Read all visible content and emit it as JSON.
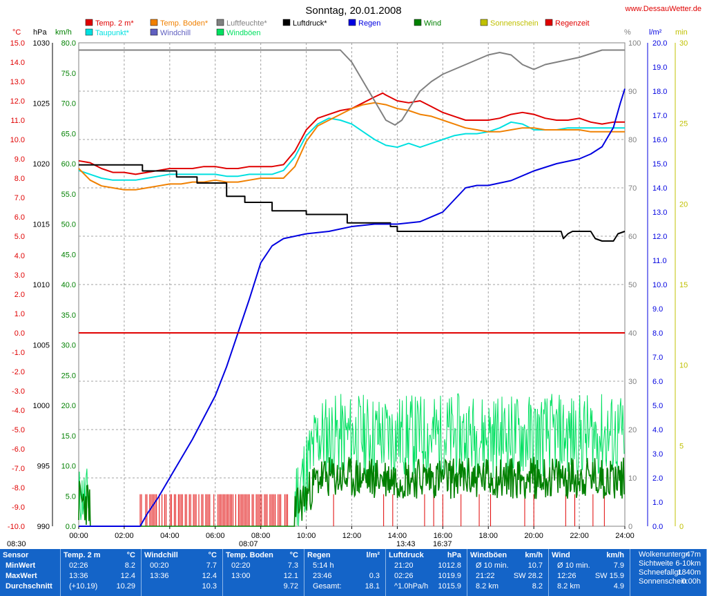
{
  "header": {
    "title": "Sonntag, 20.01.2008",
    "site": "www.DessauWetter.de"
  },
  "legend": [
    {
      "label": "Temp. 2 m*",
      "color": "#e00000"
    },
    {
      "label": "Temp. Boden*",
      "color": "#f08000"
    },
    {
      "label": "Luftfeuchte*",
      "color": "#808080"
    },
    {
      "label": "Luftdruck*",
      "color": "#000000"
    },
    {
      "label": "Regen",
      "color": "#0000e0"
    },
    {
      "label": "Wind",
      "color": "#008000"
    },
    {
      "label": "Sonnenschein",
      "color": "#c0c000"
    },
    {
      "label": "Regenzeit",
      "color": "#e00000"
    },
    {
      "label": "Taupunkt*",
      "color": "#00e0e0"
    },
    {
      "label": "Windchill",
      "color": "#6060c0"
    },
    {
      "label": "Windböen",
      "color": "#00e060"
    }
  ],
  "axis_units": {
    "temp": "°C",
    "pressure": "hPa",
    "wind": "km/h",
    "humidity": "%",
    "rain": "l/m²",
    "sun": "min"
  },
  "sun_times": {
    "sunrise": "08:07",
    "sunset": "16:37",
    "noon": "13:43",
    "dawn": "08:30"
  },
  "chart_data": {
    "type": "line",
    "x_ticks": [
      "00:00",
      "02:00",
      "04:00",
      "06:00",
      "08:00",
      "10:00",
      "12:00",
      "14:00",
      "16:00",
      "18:00",
      "20:00",
      "22:00",
      "24:00"
    ],
    "axes": {
      "temp": {
        "min": -10,
        "max": 15,
        "ticks": [
          "15.0",
          "14.0",
          "13.0",
          "12.0",
          "11.0",
          "10.0",
          "9.0",
          "8.0",
          "7.0",
          "6.0",
          "5.0",
          "4.0",
          "3.0",
          "2.0",
          "1.0",
          "0.0",
          "-1.0",
          "-2.0",
          "-3.0",
          "-4.0",
          "-5.0",
          "-6.0",
          "-7.0",
          "-8.0",
          "-9.0",
          "-10.0"
        ]
      },
      "pressure": {
        "min": 990,
        "max": 1030,
        "ticks": [
          "1030",
          "1025",
          "1020",
          "1015",
          "1010",
          "1005",
          "1000",
          "995",
          "990"
        ]
      },
      "wind": {
        "min": 0,
        "max": 80,
        "ticks": [
          "80.0",
          "75.0",
          "70.0",
          "65.0",
          "60.0",
          "55.0",
          "50.0",
          "45.0",
          "40.0",
          "35.0",
          "30.0",
          "25.0",
          "20.0",
          "15.0",
          "10.0",
          "5.0",
          "0.0"
        ]
      },
      "humidity": {
        "min": 0,
        "max": 100,
        "ticks": [
          "100",
          "90",
          "80",
          "70",
          "60",
          "50",
          "40",
          "30",
          "20",
          "10",
          "0"
        ]
      },
      "rain": {
        "min": 0,
        "max": 20,
        "ticks": [
          "20.0",
          "19.0",
          "18.0",
          "17.0",
          "16.0",
          "15.0",
          "14.0",
          "13.0",
          "12.0",
          "11.0",
          "10.0",
          "9.0",
          "8.0",
          "7.0",
          "6.0",
          "5.0",
          "4.0",
          "3.0",
          "2.0",
          "1.0",
          "0.0"
        ]
      },
      "sun": {
        "min": 0,
        "max": 30,
        "ticks": [
          "30",
          "25",
          "20",
          "15",
          "10",
          "5",
          "0"
        ]
      }
    },
    "series": [
      {
        "name": "Temp. 2 m*",
        "axis": "temp",
        "color": "#e00000",
        "x": [
          0,
          0.5,
          1,
          1.5,
          2,
          2.5,
          3,
          3.5,
          4,
          4.5,
          5,
          5.5,
          6,
          6.5,
          7,
          7.5,
          8,
          8.5,
          9,
          9.5,
          10,
          10.5,
          11,
          11.5,
          12,
          12.5,
          13,
          13.36,
          13.5,
          14,
          14.5,
          15,
          15.5,
          16,
          16.5,
          17,
          17.5,
          18,
          18.5,
          19,
          19.5,
          20,
          20.5,
          21,
          21.5,
          22,
          22.5,
          23,
          23.5,
          24
        ],
        "y": [
          8.9,
          8.8,
          8.5,
          8.3,
          8.3,
          8.2,
          8.3,
          8.4,
          8.5,
          8.5,
          8.5,
          8.6,
          8.6,
          8.5,
          8.5,
          8.6,
          8.6,
          8.6,
          8.7,
          9.4,
          10.5,
          11.1,
          11.3,
          11.5,
          11.6,
          11.9,
          12.2,
          12.4,
          12.3,
          12.0,
          11.9,
          12.0,
          11.7,
          11.4,
          11.2,
          11.0,
          11.0,
          11.0,
          11.1,
          11.3,
          11.4,
          11.3,
          11.1,
          11.0,
          11.0,
          11.1,
          10.9,
          10.8,
          10.9,
          10.9
        ]
      },
      {
        "name": "Taupunkt*",
        "axis": "temp",
        "color": "#00e0e0",
        "x": [
          0,
          0.5,
          1,
          1.5,
          2,
          2.5,
          3,
          3.5,
          4,
          4.5,
          5,
          5.5,
          6,
          6.5,
          7,
          7.5,
          8,
          8.5,
          9,
          9.5,
          10,
          10.5,
          11,
          11.5,
          12,
          12.5,
          13,
          13.5,
          14,
          14.5,
          15,
          15.5,
          16,
          16.5,
          17,
          17.5,
          18,
          18.5,
          19,
          19.5,
          20,
          20.5,
          21,
          21.5,
          22,
          22.5,
          23,
          23.5,
          24
        ],
        "y": [
          8.4,
          8.2,
          8.0,
          7.9,
          7.9,
          7.9,
          8.0,
          8.1,
          8.2,
          8.2,
          8.2,
          8.2,
          8.2,
          8.1,
          8.1,
          8.2,
          8.2,
          8.2,
          8.4,
          9.1,
          10.2,
          10.8,
          11.1,
          11.0,
          10.8,
          10.4,
          10.0,
          9.7,
          9.6,
          9.8,
          9.6,
          9.8,
          10.0,
          10.2,
          10.3,
          10.3,
          10.4,
          10.6,
          10.9,
          10.8,
          10.5,
          10.5,
          10.5,
          10.6,
          10.6,
          10.6,
          10.6,
          10.6,
          10.6
        ]
      },
      {
        "name": "Temp. Boden*",
        "axis": "temp",
        "color": "#f08000",
        "x": [
          0,
          0.5,
          1,
          1.5,
          2,
          2.5,
          3,
          3.5,
          4,
          4.5,
          5,
          5.5,
          6,
          6.5,
          7,
          7.5,
          8,
          8.5,
          9,
          9.5,
          10,
          10.5,
          11,
          11.5,
          12,
          12.5,
          13,
          13.5,
          14,
          14.5,
          15,
          15.5,
          16,
          16.5,
          17,
          17.5,
          18,
          18.5,
          19,
          19.5,
          20,
          20.5,
          21,
          21.5,
          22,
          22.5,
          23,
          23.5,
          24
        ],
        "y": [
          8.5,
          7.9,
          7.6,
          7.5,
          7.4,
          7.4,
          7.5,
          7.6,
          7.7,
          7.7,
          7.8,
          7.8,
          7.9,
          7.8,
          7.8,
          7.9,
          8.0,
          8.0,
          8.0,
          8.6,
          9.9,
          10.7,
          11.0,
          11.3,
          11.6,
          11.8,
          11.9,
          11.8,
          11.6,
          11.5,
          11.3,
          11.2,
          11.0,
          10.8,
          10.6,
          10.5,
          10.4,
          10.4,
          10.5,
          10.6,
          10.6,
          10.5,
          10.5,
          10.5,
          10.5,
          10.4,
          10.4,
          10.4,
          10.4
        ]
      },
      {
        "name": "Luftfeuchte*",
        "axis": "humidity",
        "color": "#808080",
        "x": [
          0,
          1,
          2,
          3,
          4,
          5,
          6,
          7,
          8,
          9,
          10,
          11,
          11.5,
          12,
          12.5,
          13,
          13.5,
          13.9,
          14.2,
          14.6,
          15,
          15.5,
          16,
          16.5,
          17,
          17.5,
          18,
          18.5,
          19,
          19.5,
          20,
          20.5,
          21,
          21.5,
          22,
          23,
          24
        ],
        "y": [
          98.5,
          98.5,
          98.5,
          98.5,
          98.5,
          98.5,
          98.5,
          98.5,
          98.5,
          98.5,
          98.5,
          98.5,
          98.5,
          96,
          92,
          88,
          84,
          83,
          84,
          87,
          90,
          92,
          93.5,
          94.5,
          95.5,
          96.5,
          97.5,
          98,
          97.5,
          95.5,
          94.5,
          95.5,
          96,
          96.5,
          97,
          98.5,
          98.5
        ]
      },
      {
        "name": "Luftdruck*",
        "axis": "pressure",
        "color": "#000000",
        "x": [
          0,
          2.8,
          2.8,
          4.3,
          4.3,
          5.2,
          5.2,
          6.5,
          6.5,
          7.3,
          7.3,
          8.5,
          8.5,
          10,
          10,
          11.8,
          11.8,
          13.7,
          13.7,
          14,
          14,
          21.2,
          21.3,
          21.5,
          21.7,
          22.0,
          22.5,
          22.7,
          23.0,
          23.5,
          23.7,
          24
        ],
        "y": [
          1019.9,
          1019.9,
          1019.4,
          1019.4,
          1018.9,
          1018.9,
          1018.4,
          1018.4,
          1017.3,
          1017.3,
          1016.8,
          1016.8,
          1016.1,
          1016.1,
          1015.8,
          1015.8,
          1015.1,
          1015.1,
          1014.8,
          1014.8,
          1014.4,
          1014.4,
          1013.8,
          1014.2,
          1014.4,
          1014.4,
          1014.4,
          1013.8,
          1013.6,
          1013.6,
          1014.2,
          1014.4
        ]
      },
      {
        "name": "Regen",
        "axis": "rain",
        "color": "#0000e0",
        "x": [
          0,
          1,
          2,
          2.7,
          3,
          3.5,
          4,
          4.5,
          5,
          5.5,
          6,
          6.5,
          7,
          7.5,
          8,
          8.5,
          9,
          9.5,
          10,
          11,
          12,
          13,
          14,
          15,
          16,
          16.5,
          17,
          17.5,
          18,
          18.5,
          19,
          20,
          21,
          22,
          22.5,
          23,
          23.5,
          23.8,
          24
        ],
        "y": [
          0,
          0,
          0,
          0,
          0.5,
          1.2,
          2.0,
          2.8,
          3.6,
          4.5,
          5.4,
          6.6,
          8.0,
          9.4,
          10.9,
          11.6,
          11.9,
          12.0,
          12.1,
          12.2,
          12.4,
          12.5,
          12.5,
          12.6,
          13.0,
          13.5,
          14.0,
          14.1,
          14.1,
          14.2,
          14.3,
          14.7,
          15.0,
          15.2,
          15.4,
          15.7,
          16.5,
          17.5,
          18.1
        ]
      }
    ]
  },
  "stats": {
    "columns": [
      {
        "title": "Sensor",
        "unit": "",
        "rows": [
          [
            "MinWert",
            ""
          ],
          [
            "MaxWert",
            ""
          ],
          [
            "Durchschnitt",
            ""
          ]
        ]
      },
      {
        "title": "Temp. 2 m",
        "unit": "°C",
        "rows": [
          [
            "02:26",
            "8.2"
          ],
          [
            "13:36",
            "12.4"
          ],
          [
            "(+10.19)",
            "10.29"
          ]
        ]
      },
      {
        "title": "Windchill",
        "unit": "°C",
        "rows": [
          [
            "00:20",
            "7.7"
          ],
          [
            "13:36",
            "12.4"
          ],
          [
            "",
            "10.3"
          ]
        ]
      },
      {
        "title": "Temp. Boden",
        "unit": "°C",
        "rows": [
          [
            "02:20",
            "7.3"
          ],
          [
            "13:00",
            "12.1"
          ],
          [
            "",
            "9.72"
          ]
        ]
      },
      {
        "title": "Regen",
        "unit": "l/m²",
        "rows": [
          [
            "5:14 h",
            ""
          ],
          [
            "23:46",
            "0.3"
          ],
          [
            "Gesamt:",
            "18.1"
          ]
        ]
      },
      {
        "title": "Luftdruck",
        "unit": "hPa",
        "rows": [
          [
            "21:20",
            "1012.8"
          ],
          [
            "02:26",
            "1019.9"
          ],
          [
            "^1.0hPa/h",
            "1015.9"
          ]
        ]
      },
      {
        "title": "Windböen",
        "unit": "km/h",
        "rows": [
          [
            "Ø 10 min.",
            "10.7"
          ],
          [
            "21:22",
            "SW 28.2"
          ],
          [
            "8.2 km",
            "8.2"
          ]
        ]
      },
      {
        "title": "Wind",
        "unit": "km/h",
        "rows": [
          [
            "Ø 10 min.",
            "7.9"
          ],
          [
            "12:26",
            "SW 15.9"
          ],
          [
            "8.2 km",
            "4.9"
          ]
        ]
      },
      {
        "title": "",
        "unit": "",
        "rows": [
          [
            "Wolkenuntergr.",
            "47m"
          ],
          [
            "Sichtweite",
            "6-10km"
          ],
          [
            "Schneefallgr.",
            "1840m"
          ],
          [
            "Sonnenschein",
            "0:00h"
          ]
        ]
      }
    ]
  }
}
